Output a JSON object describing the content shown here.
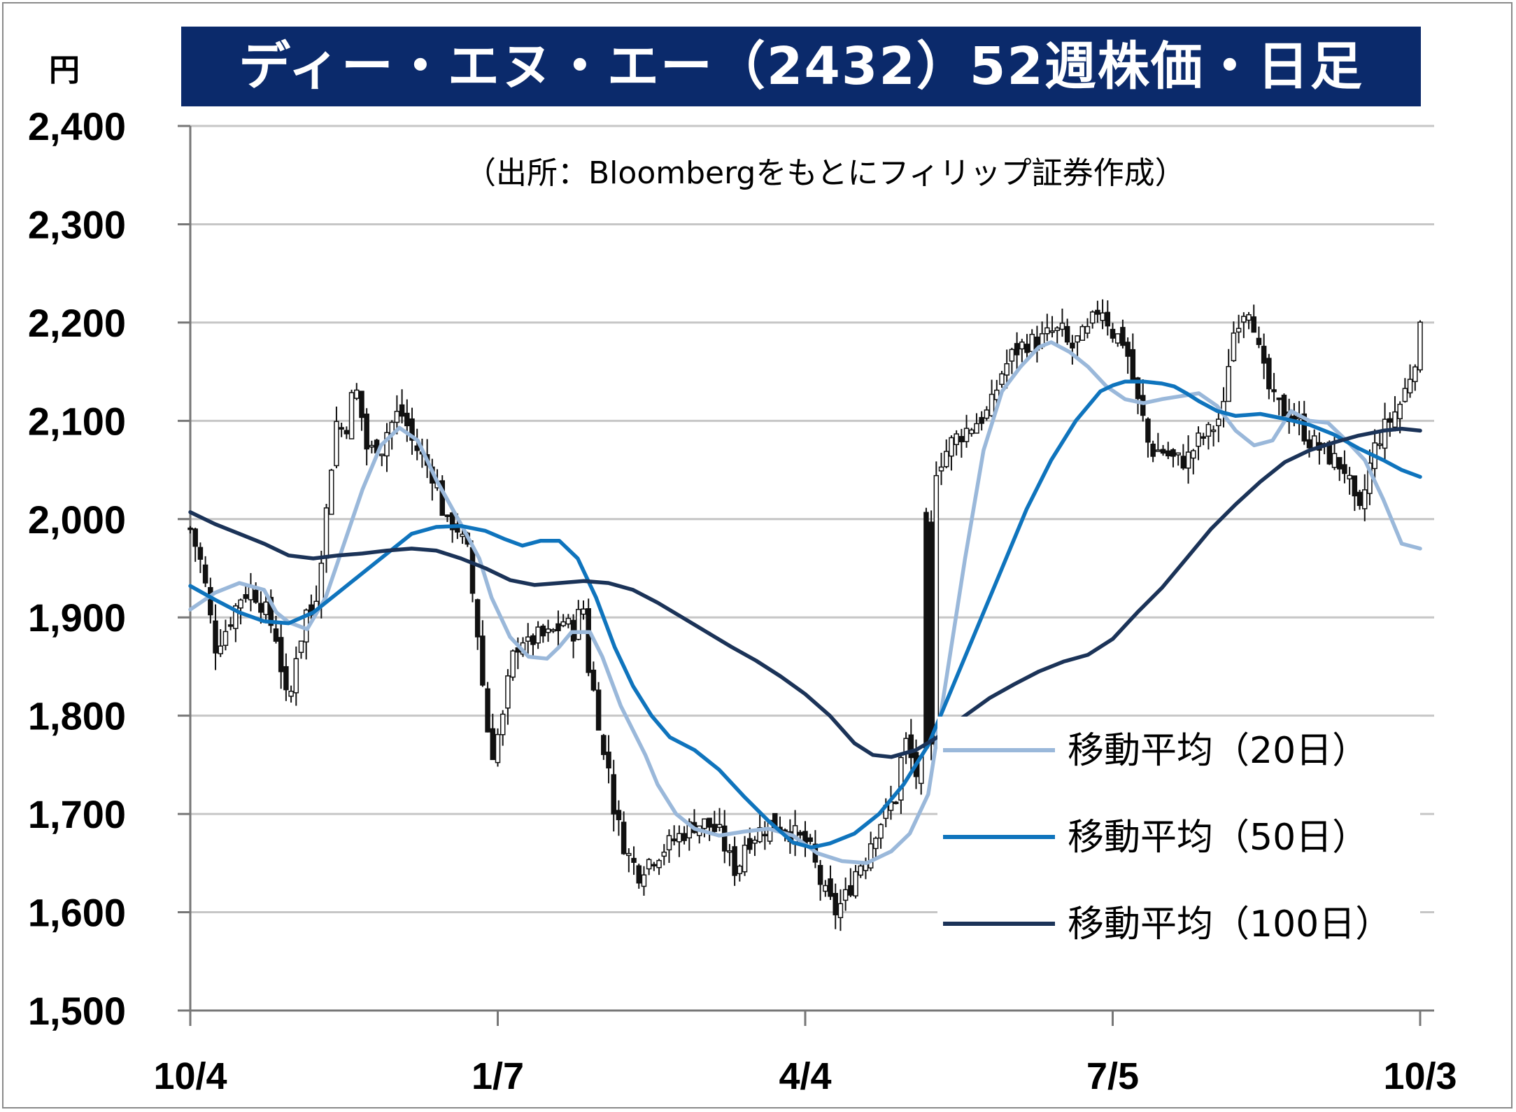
{
  "title": "ディー・エヌ・エー（2432）52週株価・日足",
  "y_unit": "円",
  "source_note": "（出所：Bloombergをもとにフィリップ証券作成）",
  "legend": [
    {
      "label": "移動平均（20日）",
      "color": "#9ab8da"
    },
    {
      "label": "移動平均（50日）",
      "color": "#0f74bd"
    },
    {
      "label": "移動平均（100日）",
      "color": "#1b3358"
    }
  ],
  "chart_data": {
    "type": "candlestick",
    "title": "ディー・エヌ・エー（2432）52週株価・日足",
    "ylabel": "円",
    "ylim": [
      1500,
      2400
    ],
    "yticks": [
      1500,
      1600,
      1700,
      1800,
      1900,
      2000,
      2100,
      2200,
      2300,
      2400
    ],
    "ytick_labels": [
      "1,500",
      "1,600",
      "1,700",
      "1,800",
      "1,900",
      "2,000",
      "2,100",
      "2,200",
      "2,300",
      "2,400"
    ],
    "xticks": [
      {
        "label": "10/4",
        "t": 0.0
      },
      {
        "label": "1/7",
        "t": 0.25
      },
      {
        "label": "4/4",
        "t": 0.5
      },
      {
        "label": "7/5",
        "t": 0.75
      },
      {
        "label": "10/3",
        "t": 1.0
      }
    ],
    "grid": true,
    "legend_position": "bottom-right",
    "close_trace": [
      [
        0.0,
        1990
      ],
      [
        0.01,
        1950
      ],
      [
        0.02,
        1870
      ],
      [
        0.03,
        1890
      ],
      [
        0.04,
        1920
      ],
      [
        0.05,
        1930
      ],
      [
        0.06,
        1910
      ],
      [
        0.07,
        1880
      ],
      [
        0.075,
        1840
      ],
      [
        0.08,
        1800
      ],
      [
        0.085,
        1860
      ],
      [
        0.09,
        1880
      ],
      [
        0.095,
        1910
      ],
      [
        0.1,
        1900
      ],
      [
        0.105,
        1950
      ],
      [
        0.11,
        2000
      ],
      [
        0.115,
        2060
      ],
      [
        0.12,
        2110
      ],
      [
        0.125,
        2080
      ],
      [
        0.13,
        2120
      ],
      [
        0.135,
        2130
      ],
      [
        0.14,
        2100
      ],
      [
        0.145,
        2060
      ],
      [
        0.15,
        2080
      ],
      [
        0.155,
        2070
      ],
      [
        0.16,
        2090
      ],
      [
        0.165,
        2100
      ],
      [
        0.17,
        2110
      ],
      [
        0.175,
        2100
      ],
      [
        0.18,
        2080
      ],
      [
        0.19,
        2060
      ],
      [
        0.2,
        2040
      ],
      [
        0.205,
        2010
      ],
      [
        0.21,
        1990
      ],
      [
        0.215,
        2000
      ],
      [
        0.22,
        1980
      ],
      [
        0.225,
        1970
      ],
      [
        0.23,
        1920
      ],
      [
        0.235,
        1870
      ],
      [
        0.24,
        1800
      ],
      [
        0.245,
        1760
      ],
      [
        0.25,
        1780
      ],
      [
        0.255,
        1800
      ],
      [
        0.26,
        1850
      ],
      [
        0.265,
        1870
      ],
      [
        0.27,
        1880
      ],
      [
        0.275,
        1870
      ],
      [
        0.28,
        1880
      ],
      [
        0.29,
        1880
      ],
      [
        0.3,
        1890
      ],
      [
        0.305,
        1900
      ],
      [
        0.31,
        1880
      ],
      [
        0.315,
        1900
      ],
      [
        0.32,
        1910
      ],
      [
        0.325,
        1830
      ],
      [
        0.33,
        1820
      ],
      [
        0.335,
        1760
      ],
      [
        0.34,
        1750
      ],
      [
        0.345,
        1700
      ],
      [
        0.35,
        1680
      ],
      [
        0.355,
        1660
      ],
      [
        0.36,
        1650
      ],
      [
        0.365,
        1640
      ],
      [
        0.37,
        1650
      ],
      [
        0.38,
        1660
      ],
      [
        0.39,
        1670
      ],
      [
        0.4,
        1680
      ],
      [
        0.41,
        1690
      ],
      [
        0.42,
        1690
      ],
      [
        0.43,
        1680
      ],
      [
        0.44,
        1650
      ],
      [
        0.445,
        1640
      ],
      [
        0.45,
        1670
      ],
      [
        0.46,
        1680
      ],
      [
        0.47,
        1690
      ],
      [
        0.48,
        1690
      ],
      [
        0.49,
        1680
      ],
      [
        0.5,
        1670
      ],
      [
        0.505,
        1660
      ],
      [
        0.51,
        1640
      ],
      [
        0.515,
        1620
      ],
      [
        0.52,
        1610
      ],
      [
        0.525,
        1600
      ],
      [
        0.53,
        1610
      ],
      [
        0.535,
        1620
      ],
      [
        0.54,
        1640
      ],
      [
        0.545,
        1650
      ],
      [
        0.55,
        1660
      ],
      [
        0.555,
        1680
      ],
      [
        0.56,
        1690
      ],
      [
        0.565,
        1700
      ],
      [
        0.57,
        1710
      ],
      [
        0.575,
        1720
      ],
      [
        0.58,
        1780
      ],
      [
        0.585,
        1760
      ],
      [
        0.59,
        1740
      ],
      [
        0.595,
        1750
      ],
      [
        0.6,
        1760
      ],
      [
        0.605,
        1770
      ],
      [
        0.595,
        1750
      ],
      [
        0.6,
        2030
      ],
      [
        0.605,
        2050
      ],
      [
        0.61,
        2060
      ],
      [
        0.62,
        2080
      ],
      [
        0.63,
        2090
      ],
      [
        0.64,
        2100
      ],
      [
        0.65,
        2110
      ],
      [
        0.66,
        2150
      ],
      [
        0.665,
        2160
      ],
      [
        0.67,
        2170
      ],
      [
        0.68,
        2180
      ],
      [
        0.69,
        2180
      ],
      [
        0.7,
        2190
      ],
      [
        0.71,
        2190
      ],
      [
        0.715,
        2170
      ],
      [
        0.72,
        2180
      ],
      [
        0.73,
        2190
      ],
      [
        0.74,
        2220
      ],
      [
        0.75,
        2190
      ],
      [
        0.76,
        2180
      ],
      [
        0.765,
        2150
      ],
      [
        0.77,
        2120
      ],
      [
        0.775,
        2100
      ],
      [
        0.78,
        2070
      ],
      [
        0.79,
        2070
      ],
      [
        0.8,
        2060
      ],
      [
        0.81,
        2060
      ],
      [
        0.82,
        2080
      ],
      [
        0.83,
        2090
      ],
      [
        0.84,
        2110
      ],
      [
        0.845,
        2170
      ],
      [
        0.85,
        2200
      ],
      [
        0.86,
        2220
      ],
      [
        0.865,
        2200
      ],
      [
        0.87,
        2160
      ],
      [
        0.875,
        2140
      ],
      [
        0.88,
        2120
      ],
      [
        0.89,
        2110
      ],
      [
        0.9,
        2100
      ],
      [
        0.91,
        2080
      ],
      [
        0.92,
        2070
      ],
      [
        0.93,
        2060
      ],
      [
        0.94,
        2050
      ],
      [
        0.945,
        2020
      ],
      [
        0.95,
        2000
      ],
      [
        0.955,
        2030
      ],
      [
        0.96,
        2060
      ],
      [
        0.965,
        2080
      ],
      [
        0.97,
        2090
      ],
      [
        0.975,
        2100
      ],
      [
        0.98,
        2110
      ],
      [
        0.985,
        2120
      ],
      [
        0.99,
        2140
      ],
      [
        0.995,
        2160
      ],
      [
        1.0,
        2190
      ]
    ],
    "series": [
      {
        "name": "移動平均（20日）",
        "points": [
          [
            0.0,
            1908
          ],
          [
            0.02,
            1925
          ],
          [
            0.04,
            1935
          ],
          [
            0.06,
            1928
          ],
          [
            0.07,
            1905
          ],
          [
            0.08,
            1895
          ],
          [
            0.095,
            1888
          ],
          [
            0.11,
            1920
          ],
          [
            0.125,
            1975
          ],
          [
            0.14,
            2030
          ],
          [
            0.155,
            2075
          ],
          [
            0.17,
            2093
          ],
          [
            0.185,
            2080
          ],
          [
            0.2,
            2040
          ],
          [
            0.22,
            1995
          ],
          [
            0.235,
            1960
          ],
          [
            0.245,
            1920
          ],
          [
            0.26,
            1880
          ],
          [
            0.275,
            1860
          ],
          [
            0.29,
            1858
          ],
          [
            0.3,
            1870
          ],
          [
            0.31,
            1885
          ],
          [
            0.325,
            1885
          ],
          [
            0.335,
            1860
          ],
          [
            0.35,
            1810
          ],
          [
            0.37,
            1760
          ],
          [
            0.38,
            1730
          ],
          [
            0.395,
            1700
          ],
          [
            0.41,
            1685
          ],
          [
            0.43,
            1678
          ],
          [
            0.45,
            1682
          ],
          [
            0.47,
            1685
          ],
          [
            0.49,
            1678
          ],
          [
            0.51,
            1660
          ],
          [
            0.53,
            1652
          ],
          [
            0.55,
            1650
          ],
          [
            0.57,
            1662
          ],
          [
            0.585,
            1680
          ],
          [
            0.6,
            1720
          ],
          [
            0.615,
            1840
          ],
          [
            0.63,
            1960
          ],
          [
            0.645,
            2070
          ],
          [
            0.66,
            2130
          ],
          [
            0.675,
            2155
          ],
          [
            0.69,
            2175
          ],
          [
            0.7,
            2180
          ],
          [
            0.715,
            2170
          ],
          [
            0.73,
            2155
          ],
          [
            0.745,
            2135
          ],
          [
            0.76,
            2122
          ],
          [
            0.775,
            2118
          ],
          [
            0.79,
            2122
          ],
          [
            0.805,
            2125
          ],
          [
            0.82,
            2128
          ],
          [
            0.835,
            2115
          ],
          [
            0.85,
            2090
          ],
          [
            0.865,
            2075
          ],
          [
            0.88,
            2080
          ],
          [
            0.895,
            2110
          ],
          [
            0.91,
            2100
          ],
          [
            0.925,
            2098
          ],
          [
            0.94,
            2080
          ],
          [
            0.955,
            2060
          ],
          [
            0.97,
            2020
          ],
          [
            0.985,
            1975
          ],
          [
            1.0,
            1970
          ]
        ]
      },
      {
        "name": "移動平均（50日）",
        "points": [
          [
            0.0,
            1932
          ],
          [
            0.02,
            1918
          ],
          [
            0.04,
            1905
          ],
          [
            0.06,
            1896
          ],
          [
            0.08,
            1894
          ],
          [
            0.1,
            1905
          ],
          [
            0.12,
            1925
          ],
          [
            0.14,
            1945
          ],
          [
            0.16,
            1965
          ],
          [
            0.18,
            1985
          ],
          [
            0.2,
            1992
          ],
          [
            0.22,
            1993
          ],
          [
            0.24,
            1988
          ],
          [
            0.255,
            1980
          ],
          [
            0.27,
            1973
          ],
          [
            0.285,
            1978
          ],
          [
            0.3,
            1978
          ],
          [
            0.315,
            1960
          ],
          [
            0.33,
            1920
          ],
          [
            0.345,
            1870
          ],
          [
            0.36,
            1830
          ],
          [
            0.375,
            1800
          ],
          [
            0.39,
            1778
          ],
          [
            0.41,
            1765
          ],
          [
            0.43,
            1745
          ],
          [
            0.45,
            1718
          ],
          [
            0.47,
            1693
          ],
          [
            0.49,
            1671
          ],
          [
            0.505,
            1666
          ],
          [
            0.52,
            1670
          ],
          [
            0.54,
            1680
          ],
          [
            0.56,
            1700
          ],
          [
            0.58,
            1730
          ],
          [
            0.6,
            1770
          ],
          [
            0.62,
            1830
          ],
          [
            0.64,
            1890
          ],
          [
            0.66,
            1950
          ],
          [
            0.68,
            2010
          ],
          [
            0.7,
            2060
          ],
          [
            0.72,
            2100
          ],
          [
            0.74,
            2130
          ],
          [
            0.75,
            2136
          ],
          [
            0.76,
            2140
          ],
          [
            0.775,
            2140
          ],
          [
            0.79,
            2138
          ],
          [
            0.8,
            2135
          ],
          [
            0.81,
            2128
          ],
          [
            0.82,
            2120
          ],
          [
            0.835,
            2110
          ],
          [
            0.85,
            2105
          ],
          [
            0.87,
            2107
          ],
          [
            0.89,
            2102
          ],
          [
            0.91,
            2096
          ],
          [
            0.93,
            2086
          ],
          [
            0.95,
            2072
          ],
          [
            0.97,
            2060
          ],
          [
            0.985,
            2050
          ],
          [
            1.0,
            2043
          ]
        ]
      },
      {
        "name": "移動平均（100日）",
        "points": [
          [
            0.0,
            2007
          ],
          [
            0.02,
            1995
          ],
          [
            0.04,
            1985
          ],
          [
            0.06,
            1975
          ],
          [
            0.08,
            1963
          ],
          [
            0.1,
            1960
          ],
          [
            0.12,
            1963
          ],
          [
            0.14,
            1965
          ],
          [
            0.16,
            1968
          ],
          [
            0.18,
            1970
          ],
          [
            0.2,
            1968
          ],
          [
            0.22,
            1960
          ],
          [
            0.24,
            1950
          ],
          [
            0.26,
            1938
          ],
          [
            0.28,
            1933
          ],
          [
            0.3,
            1935
          ],
          [
            0.32,
            1937
          ],
          [
            0.34,
            1935
          ],
          [
            0.36,
            1928
          ],
          [
            0.38,
            1915
          ],
          [
            0.4,
            1900
          ],
          [
            0.42,
            1885
          ],
          [
            0.44,
            1870
          ],
          [
            0.46,
            1856
          ],
          [
            0.48,
            1840
          ],
          [
            0.5,
            1822
          ],
          [
            0.52,
            1800
          ],
          [
            0.54,
            1772
          ],
          [
            0.555,
            1760
          ],
          [
            0.57,
            1758
          ],
          [
            0.59,
            1765
          ],
          [
            0.61,
            1780
          ],
          [
            0.63,
            1800
          ],
          [
            0.65,
            1818
          ],
          [
            0.67,
            1832
          ],
          [
            0.69,
            1845
          ],
          [
            0.71,
            1855
          ],
          [
            0.73,
            1862
          ],
          [
            0.75,
            1878
          ],
          [
            0.77,
            1905
          ],
          [
            0.79,
            1930
          ],
          [
            0.81,
            1960
          ],
          [
            0.83,
            1990
          ],
          [
            0.85,
            2015
          ],
          [
            0.87,
            2038
          ],
          [
            0.89,
            2058
          ],
          [
            0.91,
            2070
          ],
          [
            0.93,
            2078
          ],
          [
            0.95,
            2085
          ],
          [
            0.97,
            2090
          ],
          [
            0.985,
            2092
          ],
          [
            1.0,
            2090
          ]
        ]
      }
    ]
  }
}
